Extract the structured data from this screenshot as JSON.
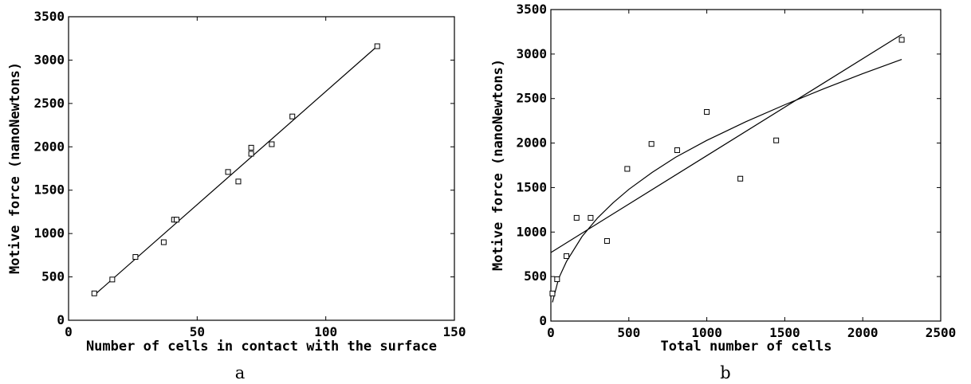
{
  "chart_data": [
    {
      "type": "scatter",
      "caption": "a",
      "xlabel": "Number of cells in contact with the surface",
      "ylabel": "Motive force (nanoNewtons)",
      "xlim": [
        0,
        150
      ],
      "ylim": [
        0,
        3500
      ],
      "xticks": [
        "0",
        "50",
        "100",
        "150"
      ],
      "yticks": [
        "0",
        "500",
        "1000",
        "1500",
        "2000",
        "2500",
        "3000",
        "3500"
      ],
      "grid": false,
      "series": [
        {
          "marker": "square",
          "x": [
            10,
            17,
            26,
            37,
            41,
            42,
            62,
            66,
            71,
            71,
            79,
            87,
            120
          ],
          "y": [
            310,
            470,
            730,
            900,
            1160,
            1160,
            1710,
            1600,
            1990,
            1920,
            2030,
            2350,
            3160
          ]
        }
      ],
      "fits": [
        {
          "kind": "linear",
          "x": [
            10,
            120
          ],
          "y": [
            290,
            3160
          ]
        }
      ]
    },
    {
      "type": "scatter",
      "caption": "b",
      "xlabel": "Total number of cells",
      "ylabel": "Motive force (nanoNewtons)",
      "xlim": [
        0,
        2500
      ],
      "ylim": [
        0,
        3500
      ],
      "xticks": [
        "0",
        "500",
        "1000",
        "1500",
        "2000",
        "2500"
      ],
      "yticks": [
        "0",
        "500",
        "1000",
        "1500",
        "2000",
        "2500",
        "3000",
        "3500"
      ],
      "grid": false,
      "series": [
        {
          "marker": "square",
          "x": [
            10,
            40,
            100,
            165,
            255,
            360,
            490,
            645,
            810,
            1000,
            1215,
            1445,
            2250
          ],
          "y": [
            310,
            470,
            730,
            1160,
            1160,
            900,
            1710,
            1990,
            1920,
            2350,
            1600,
            2030,
            3160
          ]
        }
      ],
      "fits": [
        {
          "kind": "linear",
          "x": [
            0,
            2250
          ],
          "y": [
            770,
            3220
          ]
        },
        {
          "kind": "power",
          "x": [
            10,
            50,
            100,
            200,
            300,
            400,
            500,
            650,
            800,
            1000,
            1250,
            1500,
            1750,
            2000,
            2250
          ],
          "y": [
            210,
            480,
            670,
            950,
            1160,
            1330,
            1480,
            1670,
            1840,
            2030,
            2240,
            2430,
            2610,
            2780,
            2940
          ]
        }
      ]
    }
  ]
}
